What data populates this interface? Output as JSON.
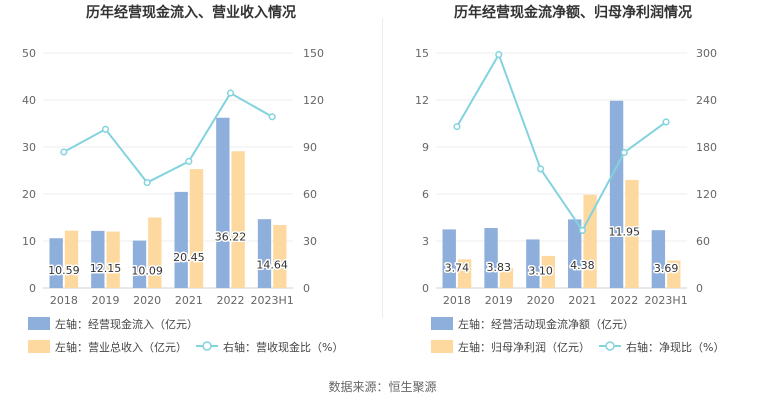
{
  "chart_data": [
    {
      "type": "bar",
      "title": "历年经营现金流入、营业收入情况",
      "categories": [
        "2018",
        "2019",
        "2020",
        "2021",
        "2022",
        "2023H1"
      ],
      "left_axis": {
        "ticks": [
          "0",
          "10",
          "20",
          "30",
          "40",
          "50"
        ],
        "ylim": [
          0,
          50
        ]
      },
      "right_axis": {
        "ticks": [
          "0",
          "30",
          "60",
          "90",
          "120",
          "150"
        ],
        "ylim": [
          0,
          150
        ]
      },
      "grid": true,
      "legend_position": "bottom",
      "series": [
        {
          "name": "左轴：经营现金流入（亿元）",
          "type": "bar",
          "axis": "left",
          "color": "#8eaedb",
          "values": [
            10.59,
            12.15,
            10.09,
            20.45,
            36.22,
            14.64
          ],
          "labels": [
            "10.59",
            "12.15",
            "10.09",
            "20.45",
            "36.22",
            "14.64"
          ]
        },
        {
          "name": "左轴：营业总收入（亿元）",
          "type": "bar",
          "axis": "left",
          "color": "#fdd9a0",
          "values": [
            12.2,
            12.0,
            15.0,
            25.3,
            29.1,
            13.4
          ]
        },
        {
          "name": "右轴：营收现金比（%）",
          "type": "line",
          "axis": "right",
          "color": "#82d3de",
          "values": [
            86.8,
            101.3,
            67.3,
            80.8,
            124.4,
            109.3
          ]
        }
      ]
    },
    {
      "type": "bar",
      "title": "历年经营现金流净额、归母净利润情况",
      "categories": [
        "2018",
        "2019",
        "2020",
        "2021",
        "2022",
        "2023H1"
      ],
      "left_axis": {
        "ticks": [
          "0",
          "3",
          "6",
          "9",
          "12",
          "15"
        ],
        "ylim": [
          0,
          15
        ]
      },
      "right_axis": {
        "ticks": [
          "0",
          "60",
          "120",
          "180",
          "240",
          "300"
        ],
        "ylim": [
          0,
          300
        ]
      },
      "grid": true,
      "legend_position": "bottom",
      "series": [
        {
          "name": "左轴：经营活动现金流净额（亿元）",
          "type": "bar",
          "axis": "left",
          "color": "#8eaedb",
          "values": [
            3.74,
            3.83,
            3.1,
            4.38,
            11.95,
            3.69
          ],
          "labels": [
            "3.74",
            "3.83",
            "3.10",
            "4.38",
            "11.95",
            "3.69"
          ]
        },
        {
          "name": "左轴：归母净利润（亿元）",
          "type": "bar",
          "axis": "left",
          "color": "#fdd9a0",
          "values": [
            1.83,
            1.28,
            2.05,
            5.95,
            6.9,
            1.75
          ]
        },
        {
          "name": "右轴：净现比（%）",
          "type": "line",
          "axis": "right",
          "color": "#82d3de",
          "values": [
            206,
            298,
            152,
            73.5,
            173,
            212
          ]
        }
      ]
    }
  ],
  "footer": {
    "source": "数据来源：恒生聚源"
  }
}
